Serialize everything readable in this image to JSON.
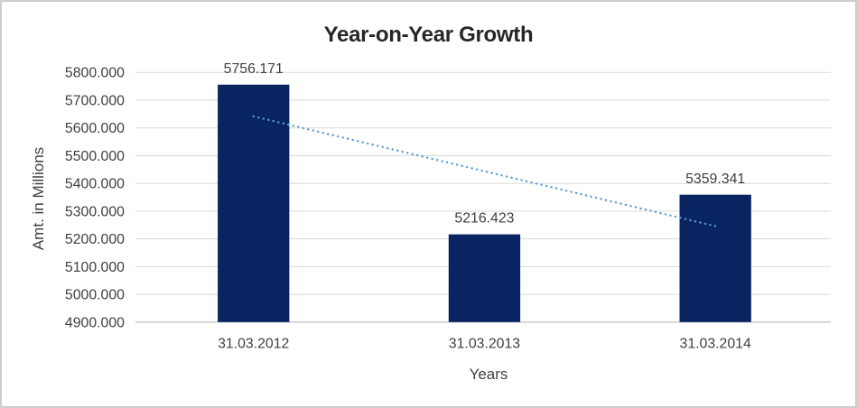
{
  "chart_data": {
    "type": "bar",
    "title": "Year-on-Year Growth",
    "categories": [
      "31.03.2012",
      "31.03.2013",
      "31.03.2014"
    ],
    "values": [
      5756.171,
      5216.423,
      5359.341
    ],
    "data_labels": [
      "5756.171",
      "5216.423",
      "5359.341"
    ],
    "xlabel": "Years",
    "ylabel": "Amt. in Millions",
    "ylim": [
      4900,
      5800
    ],
    "ytick_step": 100,
    "yticks": [
      {
        "value": 4900,
        "label": "4900.000"
      },
      {
        "value": 5000,
        "label": "5000.000"
      },
      {
        "value": 5100,
        "label": "5100.000"
      },
      {
        "value": 5200,
        "label": "5200.000"
      },
      {
        "value": 5300,
        "label": "5300.000"
      },
      {
        "value": 5400,
        "label": "5400.000"
      },
      {
        "value": 5500,
        "label": "5500.000"
      },
      {
        "value": 5600,
        "label": "5600.000"
      },
      {
        "value": 5700,
        "label": "5700.000"
      },
      {
        "value": 5800,
        "label": "5800.000"
      }
    ],
    "grid": true,
    "legend": "none",
    "trendline": {
      "type": "linear",
      "style": "dotted",
      "start_value": 5642,
      "end_value": 5246
    }
  },
  "colors": {
    "bar": "#082561",
    "trendline": "#5b9bd5",
    "gridline": "#d9d9d9",
    "axis_line": "#c6c6c6",
    "label_text": "#404040",
    "title_text": "#262626",
    "border": "#cdcdcd",
    "background": "#ffffff"
  }
}
